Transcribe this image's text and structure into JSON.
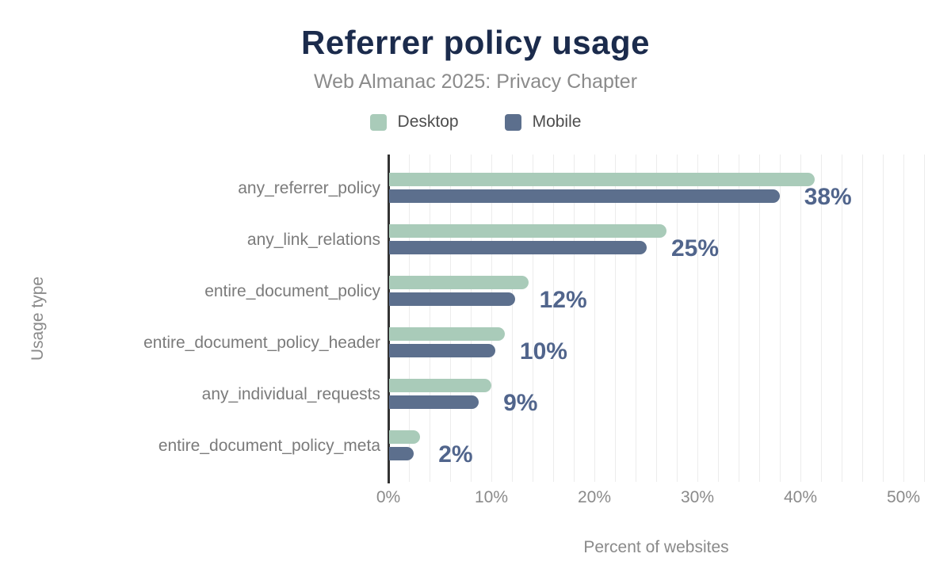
{
  "title": "Referrer policy usage",
  "subtitle": "Web Almanac 2025: Privacy Chapter",
  "chart_data": {
    "type": "bar",
    "orientation": "horizontal",
    "title": "Referrer policy usage",
    "subtitle": "Web Almanac 2025: Privacy Chapter",
    "xlabel": "Percent of websites",
    "ylabel": "Usage type",
    "xlim": [
      0,
      52
    ],
    "x_tick_values": [
      0,
      10,
      20,
      30,
      40,
      50
    ],
    "x_tick_labels": [
      "0%",
      "10%",
      "20%",
      "30%",
      "40%",
      "50%"
    ],
    "grid": "vertical gridlines every 2%",
    "legend_position": "top-center",
    "categories": [
      "any_referrer_policy",
      "any_link_relations",
      "entire_document_policy",
      "entire_document_policy_header",
      "any_individual_requests",
      "entire_document_policy_meta"
    ],
    "series": [
      {
        "name": "Desktop",
        "color": "#a9cbb9",
        "values": [
          41.3,
          26.9,
          13.5,
          11.2,
          9.9,
          3.0
        ]
      },
      {
        "name": "Mobile",
        "color": "#5c6f8d",
        "values": [
          37.9,
          25.0,
          12.2,
          10.3,
          8.7,
          2.4
        ]
      }
    ],
    "value_labels": [
      "38%",
      "25%",
      "12%",
      "10%",
      "9%",
      "2%"
    ],
    "colors": {
      "title": "#1b2b4c",
      "subtitle": "#8b8b8b",
      "desktop": "#a9cbb9",
      "mobile": "#5c6f8d",
      "value_label": "#51658c",
      "axis_line": "#333333",
      "gridline": "#ececec",
      "tick_label": "#8a8a8a",
      "category_label": "#7b7b7b",
      "legend_text": "#4d4d4d"
    }
  }
}
